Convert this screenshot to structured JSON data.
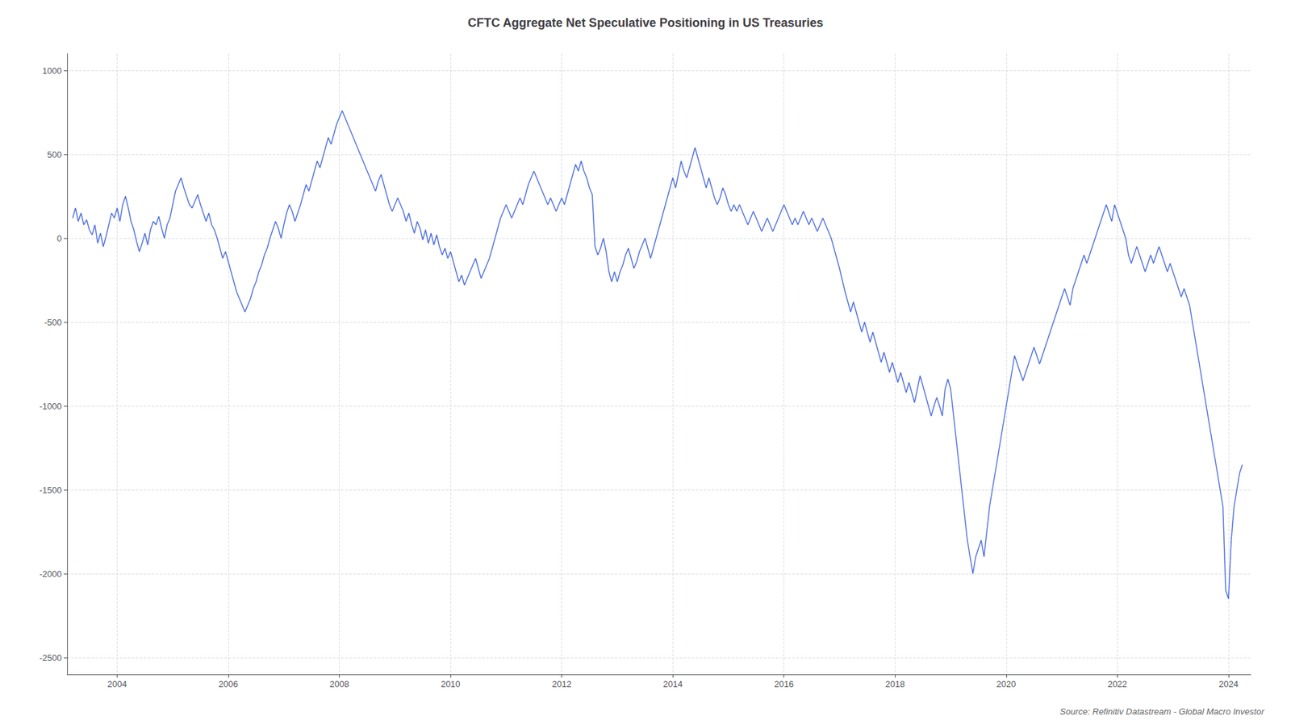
{
  "chart_data": {
    "type": "line",
    "title": "CFTC Aggregate Net Speculative Positioning in US Treasuries",
    "annotations": [
      "Source: Refinitiv Datastream - Global Macro Investor"
    ],
    "grid": true,
    "xlim": [
      2003.1,
      2024.4
    ],
    "xticks": [
      2004,
      2006,
      2008,
      2010,
      2012,
      2014,
      2016,
      2018,
      2020,
      2022,
      2024
    ],
    "ylim": [
      -2600,
      1100
    ],
    "yticks": [
      1000,
      500,
      0,
      -500,
      -1000,
      -1500,
      -2000,
      -2500
    ],
    "x": [
      2003.2,
      2003.25,
      2003.3,
      2003.35,
      2003.4,
      2003.45,
      2003.5,
      2003.55,
      2003.6,
      2003.65,
      2003.7,
      2003.75,
      2003.8,
      2003.85,
      2003.9,
      2003.95,
      2004.0,
      2004.05,
      2004.1,
      2004.15,
      2004.2,
      2004.25,
      2004.3,
      2004.35,
      2004.4,
      2004.45,
      2004.5,
      2004.55,
      2004.6,
      2004.65,
      2004.7,
      2004.75,
      2004.8,
      2004.85,
      2004.9,
      2004.95,
      2005.0,
      2005.05,
      2005.1,
      2005.15,
      2005.2,
      2005.25,
      2005.3,
      2005.35,
      2005.4,
      2005.45,
      2005.5,
      2005.55,
      2005.6,
      2005.65,
      2005.7,
      2005.75,
      2005.8,
      2005.85,
      2005.9,
      2005.95,
      2006.0,
      2006.05,
      2006.1,
      2006.15,
      2006.2,
      2006.25,
      2006.3,
      2006.35,
      2006.4,
      2006.45,
      2006.5,
      2006.55,
      2006.6,
      2006.65,
      2006.7,
      2006.75,
      2006.8,
      2006.85,
      2006.9,
      2006.95,
      2007.0,
      2007.05,
      2007.1,
      2007.15,
      2007.2,
      2007.25,
      2007.3,
      2007.35,
      2007.4,
      2007.45,
      2007.5,
      2007.55,
      2007.6,
      2007.65,
      2007.7,
      2007.75,
      2007.8,
      2007.85,
      2007.9,
      2007.95,
      2008.0,
      2008.05,
      2008.1,
      2008.15,
      2008.2,
      2008.25,
      2008.3,
      2008.35,
      2008.4,
      2008.45,
      2008.5,
      2008.55,
      2008.6,
      2008.65,
      2008.7,
      2008.75,
      2008.8,
      2008.85,
      2008.9,
      2008.95,
      2009.0,
      2009.05,
      2009.1,
      2009.15,
      2009.2,
      2009.25,
      2009.3,
      2009.35,
      2009.4,
      2009.45,
      2009.5,
      2009.55,
      2009.6,
      2009.65,
      2009.7,
      2009.75,
      2009.8,
      2009.85,
      2009.9,
      2009.95,
      2010.0,
      2010.05,
      2010.1,
      2010.15,
      2010.2,
      2010.25,
      2010.3,
      2010.35,
      2010.4,
      2010.45,
      2010.5,
      2010.55,
      2010.6,
      2010.65,
      2010.7,
      2010.75,
      2010.8,
      2010.85,
      2010.9,
      2010.95,
      2011.0,
      2011.05,
      2011.1,
      2011.15,
      2011.2,
      2011.25,
      2011.3,
      2011.35,
      2011.4,
      2011.45,
      2011.5,
      2011.55,
      2011.6,
      2011.65,
      2011.7,
      2011.75,
      2011.8,
      2011.85,
      2011.9,
      2011.95,
      2012.0,
      2012.05,
      2012.1,
      2012.15,
      2012.2,
      2012.25,
      2012.3,
      2012.35,
      2012.4,
      2012.45,
      2012.5,
      2012.55,
      2012.6,
      2012.65,
      2012.7,
      2012.75,
      2012.8,
      2012.85,
      2012.9,
      2012.95,
      2013.0,
      2013.05,
      2013.1,
      2013.15,
      2013.2,
      2013.25,
      2013.3,
      2013.35,
      2013.4,
      2013.45,
      2013.5,
      2013.55,
      2013.6,
      2013.65,
      2013.7,
      2013.75,
      2013.8,
      2013.85,
      2013.9,
      2013.95,
      2014.0,
      2014.05,
      2014.1,
      2014.15,
      2014.2,
      2014.25,
      2014.3,
      2014.35,
      2014.4,
      2014.45,
      2014.5,
      2014.55,
      2014.6,
      2014.65,
      2014.7,
      2014.75,
      2014.8,
      2014.85,
      2014.9,
      2014.95,
      2015.0,
      2015.05,
      2015.1,
      2015.15,
      2015.2,
      2015.25,
      2015.3,
      2015.35,
      2015.4,
      2015.45,
      2015.5,
      2015.55,
      2015.6,
      2015.65,
      2015.7,
      2015.75,
      2015.8,
      2015.85,
      2015.9,
      2015.95,
      2016.0,
      2016.05,
      2016.1,
      2016.15,
      2016.2,
      2016.25,
      2016.3,
      2016.35,
      2016.4,
      2016.45,
      2016.5,
      2016.55,
      2016.6,
      2016.65,
      2016.7,
      2016.75,
      2016.8,
      2016.85,
      2016.9,
      2016.95,
      2017.0,
      2017.05,
      2017.1,
      2017.15,
      2017.2,
      2017.25,
      2017.3,
      2017.35,
      2017.4,
      2017.45,
      2017.5,
      2017.55,
      2017.6,
      2017.65,
      2017.7,
      2017.75,
      2017.8,
      2017.85,
      2017.9,
      2017.95,
      2018.0,
      2018.05,
      2018.1,
      2018.15,
      2018.2,
      2018.25,
      2018.3,
      2018.35,
      2018.4,
      2018.45,
      2018.5,
      2018.55,
      2018.6,
      2018.65,
      2018.7,
      2018.75,
      2018.8,
      2018.85,
      2018.9,
      2018.95,
      2019.0,
      2019.05,
      2019.1,
      2019.15,
      2019.2,
      2019.25,
      2019.3,
      2019.35,
      2019.4,
      2019.45,
      2019.5,
      2019.55,
      2019.6,
      2019.65,
      2019.7,
      2019.75,
      2019.8,
      2019.85,
      2019.9,
      2019.95,
      2020.0,
      2020.05,
      2020.1,
      2020.15,
      2020.2,
      2020.25,
      2020.3,
      2020.35,
      2020.4,
      2020.45,
      2020.5,
      2020.55,
      2020.6,
      2020.65,
      2020.7,
      2020.75,
      2020.8,
      2020.85,
      2020.9,
      2020.95,
      2021.0,
      2021.05,
      2021.1,
      2021.15,
      2021.2,
      2021.25,
      2021.3,
      2021.35,
      2021.4,
      2021.45,
      2021.5,
      2021.55,
      2021.6,
      2021.65,
      2021.7,
      2021.75,
      2021.8,
      2021.85,
      2021.9,
      2021.95,
      2022.0,
      2022.05,
      2022.1,
      2022.15,
      2022.2,
      2022.25,
      2022.3,
      2022.35,
      2022.4,
      2022.45,
      2022.5,
      2022.55,
      2022.6,
      2022.65,
      2022.7,
      2022.75,
      2022.8,
      2022.85,
      2022.9,
      2022.95,
      2023.0,
      2023.05,
      2023.1,
      2023.15,
      2023.2,
      2023.25,
      2023.3,
      2023.35,
      2023.4,
      2023.45,
      2023.5,
      2023.55,
      2023.6,
      2023.65,
      2023.7,
      2023.75,
      2023.8,
      2023.85,
      2023.9,
      2023.95,
      2024.0,
      2024.05,
      2024.1,
      2024.15,
      2024.2,
      2024.25
    ],
    "values": [
      120,
      180,
      100,
      150,
      80,
      110,
      50,
      20,
      80,
      -30,
      30,
      -50,
      10,
      80,
      150,
      120,
      180,
      100,
      200,
      250,
      180,
      100,
      50,
      -20,
      -80,
      -30,
      30,
      -40,
      50,
      100,
      80,
      130,
      60,
      0,
      80,
      120,
      200,
      280,
      320,
      360,
      300,
      250,
      200,
      180,
      220,
      260,
      200,
      150,
      100,
      150,
      80,
      50,
      0,
      -60,
      -120,
      -80,
      -140,
      -200,
      -260,
      -320,
      -360,
      -400,
      -440,
      -400,
      -360,
      -300,
      -260,
      -200,
      -160,
      -100,
      -60,
      0,
      50,
      100,
      60,
      0,
      80,
      150,
      200,
      160,
      100,
      150,
      200,
      260,
      320,
      280,
      340,
      400,
      460,
      420,
      480,
      540,
      600,
      560,
      620,
      680,
      720,
      760,
      720,
      680,
      640,
      600,
      560,
      520,
      480,
      440,
      400,
      360,
      320,
      280,
      340,
      380,
      320,
      260,
      200,
      160,
      200,
      240,
      200,
      160,
      100,
      150,
      80,
      30,
      100,
      60,
      -10,
      50,
      -30,
      30,
      -40,
      20,
      -50,
      -100,
      -60,
      -120,
      -80,
      -140,
      -200,
      -260,
      -220,
      -280,
      -240,
      -200,
      -160,
      -120,
      -180,
      -240,
      -200,
      -160,
      -120,
      -60,
      0,
      60,
      120,
      160,
      200,
      160,
      120,
      160,
      200,
      240,
      200,
      260,
      320,
      360,
      400,
      360,
      320,
      280,
      240,
      200,
      240,
      200,
      160,
      200,
      240,
      200,
      260,
      320,
      380,
      440,
      400,
      460,
      400,
      360,
      300,
      260,
      -50,
      -100,
      -60,
      0,
      -80,
      -200,
      -260,
      -200,
      -260,
      -200,
      -160,
      -100,
      -60,
      -120,
      -180,
      -140,
      -80,
      -40,
      0,
      -60,
      -120,
      -60,
      0,
      60,
      120,
      180,
      240,
      300,
      360,
      300,
      380,
      460,
      400,
      360,
      420,
      480,
      540,
      480,
      420,
      360,
      300,
      360,
      300,
      240,
      200,
      240,
      300,
      260,
      200,
      160,
      200,
      160,
      200,
      160,
      120,
      80,
      120,
      160,
      120,
      80,
      40,
      80,
      120,
      80,
      40,
      80,
      120,
      160,
      200,
      160,
      120,
      80,
      120,
      80,
      120,
      160,
      120,
      80,
      120,
      80,
      40,
      80,
      120,
      80,
      40,
      0,
      -60,
      -120,
      -180,
      -250,
      -320,
      -380,
      -440,
      -380,
      -440,
      -500,
      -560,
      -500,
      -560,
      -620,
      -560,
      -620,
      -680,
      -740,
      -680,
      -740,
      -800,
      -740,
      -800,
      -860,
      -800,
      -860,
      -920,
      -860,
      -920,
      -980,
      -900,
      -820,
      -880,
      -940,
      -1000,
      -1060,
      -1000,
      -950,
      -1000,
      -1060,
      -900,
      -840,
      -900,
      -1050,
      -1200,
      -1350,
      -1500,
      -1650,
      -1800,
      -1900,
      -2000,
      -1900,
      -1850,
      -1800,
      -1900,
      -1750,
      -1600,
      -1500,
      -1400,
      -1300,
      -1200,
      -1100,
      -1000,
      -900,
      -800,
      -700,
      -750,
      -800,
      -850,
      -800,
      -750,
      -700,
      -650,
      -700,
      -750,
      -700,
      -650,
      -600,
      -550,
      -500,
      -450,
      -400,
      -350,
      -300,
      -350,
      -400,
      -300,
      -250,
      -200,
      -150,
      -100,
      -150,
      -100,
      -50,
      0,
      50,
      100,
      150,
      200,
      150,
      100,
      200,
      150,
      100,
      50,
      0,
      -100,
      -150,
      -100,
      -50,
      -100,
      -150,
      -200,
      -150,
      -100,
      -150,
      -100,
      -50,
      -100,
      -150,
      -200,
      -150,
      -200,
      -250,
      -300,
      -350,
      -300,
      -350,
      -400,
      -500,
      -600,
      -700,
      -800,
      -900,
      -1000,
      -1100,
      -1200,
      -1300,
      -1400,
      -1500,
      -1600,
      -2100,
      -2150,
      -1800,
      -1600,
      -1500,
      -1400,
      -1350
    ]
  }
}
